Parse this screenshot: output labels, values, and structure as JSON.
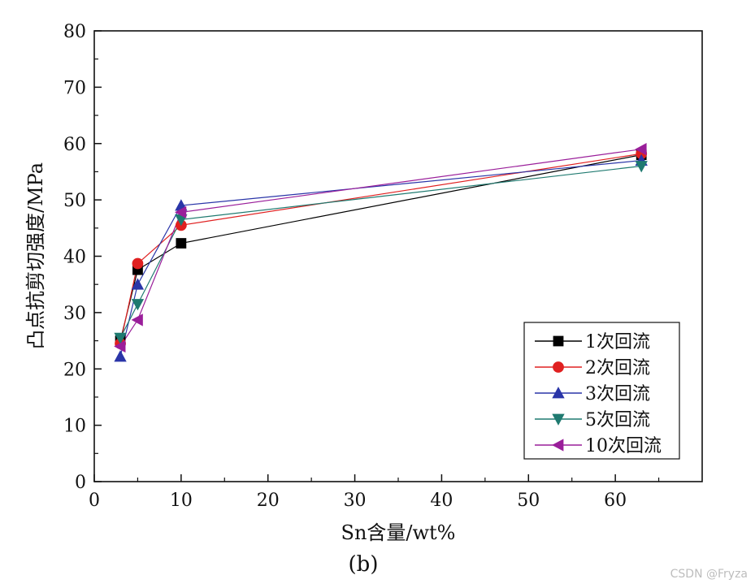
{
  "chart_data": {
    "type": "line",
    "title": "",
    "xlabel": "Sn含量/wt%",
    "ylabel": "凸点抗剪切强度/MPa",
    "xlim": [
      0,
      70
    ],
    "ylim": [
      0,
      80
    ],
    "x_ticks": [
      0,
      10,
      20,
      30,
      40,
      50,
      60
    ],
    "y_ticks": [
      0,
      10,
      20,
      30,
      40,
      50,
      60,
      70,
      80
    ],
    "x": [
      3,
      5,
      10,
      63
    ],
    "legend_position": "bottom-right",
    "series": [
      {
        "name": "1次回流",
        "color": "#000000",
        "marker": "square",
        "values": [
          25,
          37.6,
          42.3,
          58
        ]
      },
      {
        "name": "2次回流",
        "color": "#e02020",
        "marker": "circle",
        "values": [
          24.5,
          38.7,
          45.5,
          58.2
        ]
      },
      {
        "name": "3次回流",
        "color": "#2a35a8",
        "marker": "triangle-up",
        "values": [
          22.2,
          35,
          49,
          57
        ]
      },
      {
        "name": "5次回流",
        "color": "#1f7a70",
        "marker": "triangle-down",
        "values": [
          25.5,
          31.5,
          46.5,
          56
        ]
      },
      {
        "name": "10次回流",
        "color": "#9a1e9a",
        "marker": "triangle-left",
        "values": [
          24,
          28.7,
          47.8,
          59
        ]
      }
    ]
  },
  "caption": "(b)",
  "watermark": "CSDN @Fryza"
}
